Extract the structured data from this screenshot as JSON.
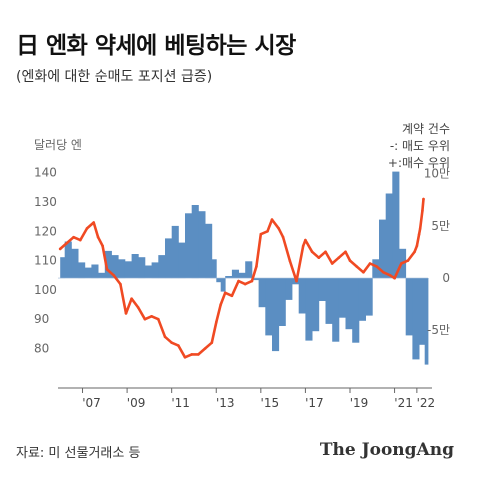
{
  "header": {
    "title": "日 엔화 약세에 베팅하는 시장",
    "subtitle": "(엔화에 대한 순매도 포지션 급증)"
  },
  "footer": {
    "source": "자료: 미 선물거래소 등",
    "brand": "The JoongAng"
  },
  "colors": {
    "yen_line": "#f04a23",
    "position_area": "#5b8ec2",
    "axis_text": "#666666"
  },
  "chart_data": {
    "type": "area",
    "left_axis": {
      "label": "달러당 엔",
      "ticks": [
        80,
        90,
        100,
        110,
        120,
        130,
        140
      ],
      "tick_labels": [
        "80",
        "90",
        "100",
        "110",
        "120",
        "130",
        "140"
      ],
      "ylim": [
        72,
        145
      ]
    },
    "right_axis": {
      "labels": [
        "계약 건수",
        "-: 매도 우위",
        "+:매수 우위"
      ],
      "ticks": [
        -5,
        0,
        5,
        10
      ],
      "tick_labels": [
        "-5만",
        "0",
        "5만",
        "10만"
      ],
      "ylim": [
        -9,
        11.5
      ]
    },
    "x_axis": {
      "ticks": [
        2007,
        2009,
        2011,
        2013,
        2015,
        2017,
        2019,
        2021,
        2022
      ],
      "tick_labels": [
        "'07",
        "'09",
        "'11",
        "'13",
        "'15",
        "'17",
        "'19",
        "'21",
        "'22"
      ],
      "xlim": [
        2005.9,
        2022.5
      ]
    },
    "series": [
      {
        "role": "line",
        "axis": "left",
        "x": [
          2006.0,
          2006.3,
          2006.6,
          2006.9,
          2007.2,
          2007.5,
          2007.7,
          2007.9,
          2008.1,
          2008.4,
          2008.7,
          2008.95,
          2009.2,
          2009.5,
          2009.8,
          2010.1,
          2010.4,
          2010.7,
          2011.0,
          2011.3,
          2011.6,
          2011.9,
          2012.2,
          2012.5,
          2012.8,
          2013.0,
          2013.2,
          2013.4,
          2013.7,
          2014.0,
          2014.3,
          2014.6,
          2014.8,
          2015.0,
          2015.3,
          2015.5,
          2015.8,
          2016.0,
          2016.3,
          2016.6,
          2016.9,
          2017.0,
          2017.3,
          2017.6,
          2017.9,
          2018.2,
          2018.5,
          2018.8,
          2019.0,
          2019.3,
          2019.6,
          2019.9,
          2020.2,
          2020.5,
          2020.8,
          2021.0,
          2021.3,
          2021.6,
          2021.9,
          2022.0,
          2022.1,
          2022.15,
          2022.25,
          2022.3
        ],
        "values": [
          114,
          116,
          118,
          117,
          121,
          123,
          118,
          115,
          107,
          105,
          102,
          92,
          97,
          94,
          90,
          91,
          90,
          84,
          82,
          81,
          77,
          78,
          78,
          80,
          82,
          89,
          95,
          99,
          98,
          103,
          102,
          103,
          108,
          119,
          120,
          124,
          121,
          118,
          110,
          103,
          115,
          117,
          113,
          111,
          113,
          109,
          111,
          113,
          110,
          108,
          106,
          109,
          108,
          106,
          105,
          104,
          109,
          110,
          113,
          115,
          119,
          121,
          127,
          131
        ]
      },
      {
        "role": "area",
        "axis": "right",
        "x": [
          2006.0,
          2006.2,
          2006.5,
          2006.8,
          2007.1,
          2007.4,
          2007.7,
          2008.0,
          2008.3,
          2008.6,
          2008.9,
          2009.2,
          2009.5,
          2009.8,
          2010.1,
          2010.4,
          2010.7,
          2011.0,
          2011.3,
          2011.6,
          2011.9,
          2012.2,
          2012.5,
          2012.8,
          2013.0,
          2013.2,
          2013.4,
          2013.7,
          2014.0,
          2014.3,
          2014.6,
          2014.9,
          2015.2,
          2015.5,
          2015.8,
          2016.1,
          2016.4,
          2016.7,
          2017.0,
          2017.3,
          2017.6,
          2017.9,
          2018.2,
          2018.5,
          2018.8,
          2019.1,
          2019.4,
          2019.7,
          2020.0,
          2020.3,
          2020.6,
          2020.9,
          2021.2,
          2021.5,
          2021.8,
          2022.1,
          2022.35
        ],
        "values": [
          2.0,
          3.5,
          2.8,
          1.5,
          1.0,
          1.3,
          0.5,
          2.6,
          2.2,
          1.8,
          1.6,
          2.3,
          2.0,
          1.2,
          1.5,
          2.2,
          3.8,
          5.0,
          3.4,
          6.2,
          7.0,
          6.4,
          5.2,
          1.8,
          -0.4,
          -1.3,
          0.2,
          0.8,
          0.5,
          1.6,
          -0.2,
          -2.8,
          -5.5,
          -7.0,
          -4.6,
          -2.1,
          -0.6,
          -3.4,
          -6.0,
          -5.1,
          -2.2,
          -4.4,
          -6.1,
          -3.8,
          -4.9,
          -6.2,
          -4.1,
          -3.6,
          1.8,
          5.6,
          8.1,
          10.2,
          2.8,
          -5.5,
          -7.8,
          -6.4,
          -8.3
        ]
      }
    ]
  }
}
